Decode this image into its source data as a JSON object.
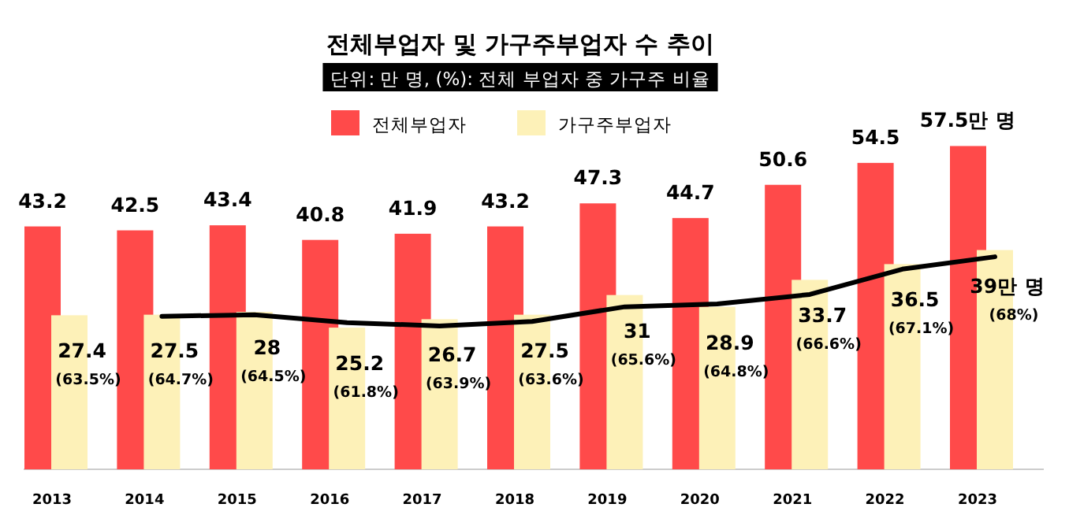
{
  "chart_data": {
    "type": "bar",
    "title": "전체부업자 및 가구주부업자 수 추이",
    "subtitle": "단위: 만 명, (%): 전체 부업자 중 가구주 비율",
    "categories": [
      "2013",
      "2014",
      "2015",
      "2016",
      "2017",
      "2018",
      "2019",
      "2020",
      "2021",
      "2022",
      "2023"
    ],
    "legend": "top left",
    "series": [
      {
        "name": "전체부업자",
        "color": "#ff4a4a",
        "values": [
          43.2,
          42.5,
          43.4,
          40.8,
          41.9,
          43.2,
          47.3,
          44.7,
          50.6,
          54.5,
          57.5
        ],
        "value_labels": [
          "43.2",
          "42.5",
          "43.4",
          "40.8",
          "41.9",
          "43.2",
          "47.3",
          "44.7",
          "50.6",
          "54.5",
          "57.5만 명"
        ]
      },
      {
        "name": "가구주부업자",
        "color": "#fdf1b8",
        "values": [
          27.4,
          27.5,
          28,
          25.2,
          26.7,
          27.5,
          31,
          28.9,
          33.7,
          36.5,
          39
        ],
        "value_labels": [
          "27.4 (63.5%)",
          "27.5 (64.7%)",
          "28 (64.5%)",
          "25.2 (61.8%)",
          "26.7 (63.9%)",
          "27.5 (63.6%)",
          "31 (65.6%)",
          "28.9 (64.8%)",
          "33.7 (66.6%)",
          "36.5 (67.1%)",
          "39만 명 (68%)"
        ]
      },
      {
        "type": "line",
        "color": "#000000",
        "values": [
          null,
          27.2,
          27.5,
          26.1,
          25.5,
          26.3,
          28.9,
          29.4,
          31.1,
          35.6,
          37.8
        ]
      }
    ]
  }
}
